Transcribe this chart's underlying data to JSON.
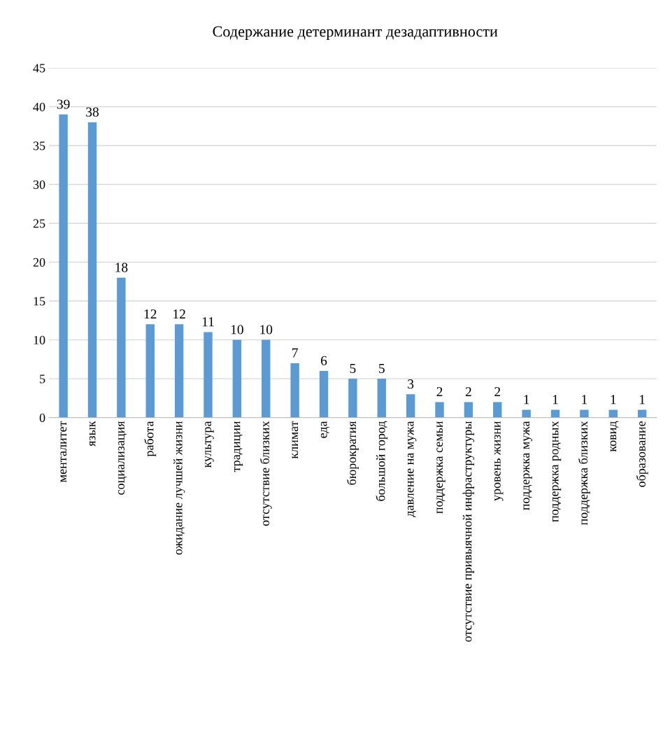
{
  "chart_data": {
    "type": "bar",
    "title": "Содержание детерминант дезадаптивности",
    "categories": [
      "менталитет",
      "язык",
      "социализация",
      "работа",
      "ожидание лучшей жизни",
      "культура",
      "традиции",
      "отсутствие близких",
      "климат",
      "еда",
      "бюрократия",
      "большой город",
      "давление на мужа",
      "поддержка семьи",
      "отсутствие привыячной инфраструктуры",
      "уровень жизни",
      "поддержка мужа",
      "поддержка родных",
      "поддержка близких",
      "ковид",
      "образование"
    ],
    "values": [
      39,
      38,
      18,
      12,
      12,
      11,
      10,
      10,
      7,
      6,
      5,
      5,
      3,
      2,
      2,
      2,
      1,
      1,
      1,
      1,
      1
    ],
    "color": "#5b9bd5",
    "ylim": [
      0,
      45
    ],
    "yticks": [
      0,
      5,
      10,
      15,
      20,
      25,
      30,
      35,
      40,
      45
    ],
    "grid": "y",
    "data_labels": true
  }
}
